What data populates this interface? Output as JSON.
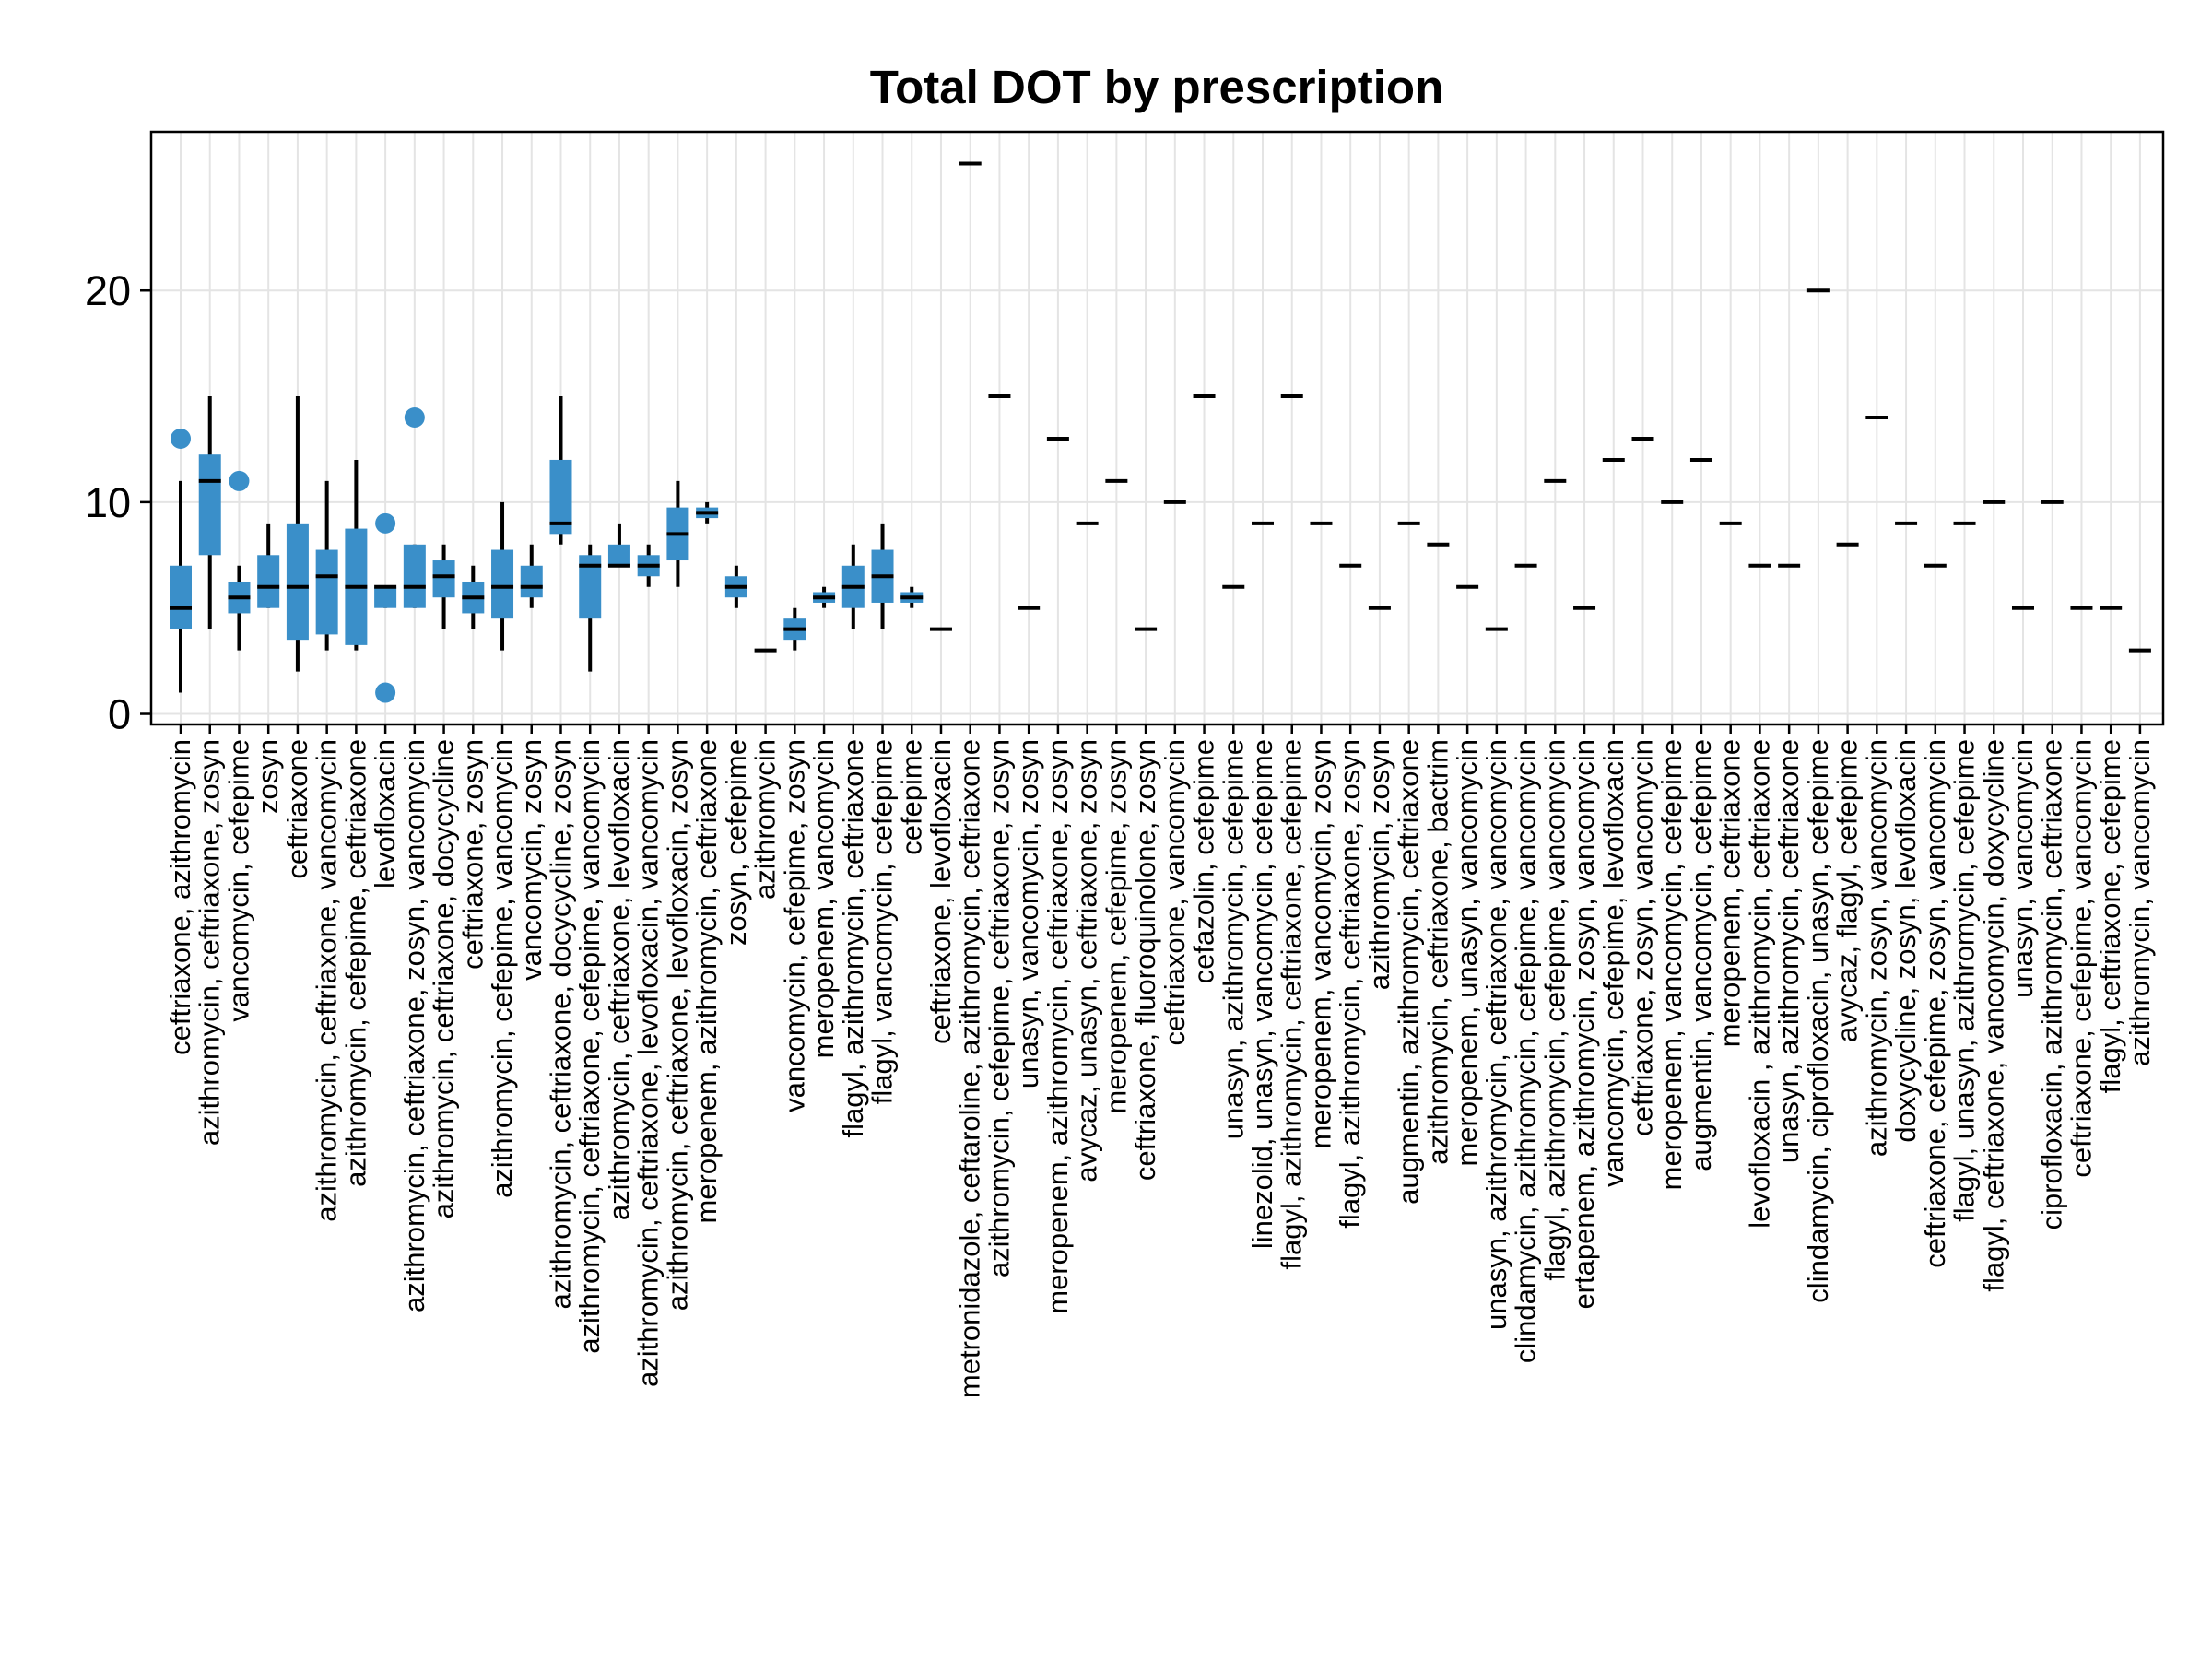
{
  "chart_data": {
    "type": "boxplot",
    "title": "Total DOT by prescription",
    "xlabel": "",
    "ylabel": "",
    "ylim": [
      -0.5,
      27.5
    ],
    "yticks": [
      0,
      10,
      20
    ],
    "grid": true,
    "legend": "none",
    "colors": {
      "box": "#3a8fc9",
      "median": "#000000",
      "outlier": "#3a8fc9",
      "whisker": "#000000",
      "grid": "#e4e4e4"
    },
    "categories": [
      "ceftriaxone, azithromycin",
      "azithromycin, ceftriaxone, zosyn",
      "vancomycin, cefepime",
      "zosyn",
      "ceftriaxone",
      "azithromycin, ceftriaxone, vancomycin",
      "azithromycin, cefepime, ceftriaxone",
      "levofloxacin",
      "azithromycin, ceftriaxone, zosyn, vancomycin",
      "azithromycin, ceftriaxone, docycycline",
      "ceftriaxone, zosyn",
      "azithromycin, cefepime, vancomycin",
      "vancomycin, zosyn",
      "azithromycin, ceftriaxone, docycycline, zosyn",
      "azithromycin, ceftriaxone, cefepime, vancomycin",
      "azithromycin, ceftriaxone, levofloxacin",
      "azithromycin, ceftriaxone, levofloxacin, vancomycin",
      "azithromycin, ceftriaxone, levofloxacin, zosyn",
      "meropenem, azithromycin, ceftriaxone",
      "zosyn, cefepime",
      "azithromycin",
      "vancomycin, cefepime, zosyn",
      "meropenem, vancomycin",
      "flagyl, azithromycin, ceftriaxone",
      "flagyl, vancomycin, cefepime",
      "cefepime",
      "ceftriaxone, levofloxacin",
      "metronidazole, ceftaroline, azithromycin, ceftriaxone",
      "azithromycin, cefepime, ceftriaxone, zosyn",
      "unasyn, vancomycin, zosyn",
      "meropenem, azithromycin, ceftriaxone, zosyn",
      "avycaz, unasyn, ceftriaxone, zosyn",
      "meropenem, cefepime, zosyn",
      "ceftriaxone, fluoroquinolone, zosyn",
      "ceftriaxone, vancomycin",
      "cefazolin, cefepime",
      "unasyn, azithromycin, cefepime",
      "linezolid, unasyn, vancomycin, cefepime",
      "flagyl, azithromycin, ceftriaxone, cefepime",
      "meropenem, vancomycin, zosyn",
      "flagyl, azithromycin, ceftriaxone, zosyn",
      "azithromycin, zosyn",
      "augmentin, azithromycin, ceftriaxone",
      "azithromycin, ceftriaxone, bactrim",
      "meropenem, unasyn, vancomycin",
      "unasyn, azithromycin, ceftriaxone, vancomycin",
      "clindamycin, azithromycin, cefepime, vancomycin",
      "flagyl, azithromycin, cefepime, vancomycin",
      "ertapenem, azithromycin, zosyn, vancomycin",
      "vancomycin, cefepime, levofloxacin",
      "ceftriaxone, zosyn, vancomycin",
      "meropenem, vancomycin, cefepime",
      "augmentin, vancomycin, cefepime",
      "meropenem, ceftriaxone",
      "levofloxacin , azithromycin, ceftriaxone",
      "unasyn, azithromycin, ceftriaxone",
      "clindamycin, ciprofloxacin, unasyn, cefepime",
      "avycaz, flagyl, cefepime",
      "azithromycin, zosyn, vancomycin",
      "doxycycline, zosyn, levofloxacin",
      "ceftriaxone, cefepime, zosyn, vancomycin",
      "flagyl, unasyn, azithromycin, cefepime",
      "flagyl, ceftriaxone, vancomycin, doxycycline",
      "unasyn, vancomycin",
      "ciprofloxacin, azithromycin, ceftriaxone",
      "ceftriaxone, cefepime, vancomycin",
      "flagyl, ceftriaxone, cefepime",
      "azithromycin, vancomycin"
    ],
    "series": [
      {
        "boxes": [
          {
            "q1": 4,
            "median": 5,
            "q3": 7,
            "lo": 1,
            "hi": 11,
            "outliers": [
              13
            ]
          },
          {
            "q1": 7.5,
            "median": 11,
            "q3": 12.25,
            "lo": 4,
            "hi": 15,
            "outliers": []
          },
          {
            "q1": 4.75,
            "median": 5.5,
            "q3": 6.25,
            "lo": 3,
            "hi": 7,
            "outliers": [
              11
            ]
          },
          {
            "q1": 5,
            "median": 6,
            "q3": 7.5,
            "lo": 5,
            "hi": 9,
            "outliers": []
          },
          {
            "q1": 3.5,
            "median": 6,
            "q3": 9,
            "lo": 2,
            "hi": 15,
            "outliers": []
          },
          {
            "q1": 3.75,
            "median": 6.5,
            "q3": 7.75,
            "lo": 3,
            "hi": 11,
            "outliers": []
          },
          {
            "q1": 3.25,
            "median": 6,
            "q3": 8.75,
            "lo": 3,
            "hi": 12,
            "outliers": []
          },
          {
            "q1": 5,
            "median": 6,
            "q3": 6,
            "lo": 5,
            "hi": 6,
            "outliers": [
              9,
              1
            ]
          },
          {
            "q1": 5,
            "median": 6,
            "q3": 8,
            "lo": 5,
            "hi": 8,
            "outliers": [
              14
            ]
          },
          {
            "q1": 5.5,
            "median": 6.5,
            "q3": 7.25,
            "lo": 4,
            "hi": 8,
            "outliers": []
          },
          {
            "q1": 4.75,
            "median": 5.5,
            "q3": 6.25,
            "lo": 4,
            "hi": 7,
            "outliers": []
          },
          {
            "q1": 4.5,
            "median": 6,
            "q3": 7.75,
            "lo": 3,
            "hi": 10,
            "outliers": []
          },
          {
            "q1": 5.5,
            "median": 6,
            "q3": 7,
            "lo": 5,
            "hi": 8,
            "outliers": []
          },
          {
            "q1": 8.5,
            "median": 9,
            "q3": 12,
            "lo": 8,
            "hi": 15,
            "outliers": []
          },
          {
            "q1": 4.5,
            "median": 7,
            "q3": 7.5,
            "lo": 2,
            "hi": 8,
            "outliers": []
          },
          {
            "q1": 7,
            "median": 7,
            "q3": 8,
            "lo": 7,
            "hi": 9,
            "outliers": []
          },
          {
            "q1": 6.5,
            "median": 7,
            "q3": 7.5,
            "lo": 6,
            "hi": 8,
            "outliers": []
          },
          {
            "q1": 7.25,
            "median": 8.5,
            "q3": 9.75,
            "lo": 6,
            "hi": 11,
            "outliers": []
          },
          {
            "q1": 9.25,
            "median": 9.5,
            "q3": 9.75,
            "lo": 9,
            "hi": 10,
            "outliers": []
          },
          {
            "q1": 5.5,
            "median": 6,
            "q3": 6.5,
            "lo": 5,
            "hi": 7,
            "outliers": []
          },
          {
            "q1": 3,
            "median": 3,
            "q3": 3,
            "lo": 3,
            "hi": 3,
            "outliers": []
          },
          {
            "q1": 3.5,
            "median": 4,
            "q3": 4.5,
            "lo": 3,
            "hi": 5,
            "outliers": []
          },
          {
            "q1": 5.25,
            "median": 5.5,
            "q3": 5.75,
            "lo": 5,
            "hi": 6,
            "outliers": []
          },
          {
            "q1": 5,
            "median": 6,
            "q3": 7,
            "lo": 4,
            "hi": 8,
            "outliers": []
          },
          {
            "q1": 5.25,
            "median": 6.5,
            "q3": 7.75,
            "lo": 4,
            "hi": 9,
            "outliers": []
          },
          {
            "q1": 5.25,
            "median": 5.5,
            "q3": 5.75,
            "lo": 5,
            "hi": 6,
            "outliers": []
          },
          {
            "q1": 4,
            "median": 4,
            "q3": 4,
            "lo": 4,
            "hi": 4,
            "outliers": []
          },
          {
            "q1": 26,
            "median": 26,
            "q3": 26,
            "lo": 26,
            "hi": 26,
            "outliers": []
          },
          {
            "q1": 15,
            "median": 15,
            "q3": 15,
            "lo": 15,
            "hi": 15,
            "outliers": []
          },
          {
            "q1": 5,
            "median": 5,
            "q3": 5,
            "lo": 5,
            "hi": 5,
            "outliers": []
          },
          {
            "q1": 13,
            "median": 13,
            "q3": 13,
            "lo": 13,
            "hi": 13,
            "outliers": []
          },
          {
            "q1": 9,
            "median": 9,
            "q3": 9,
            "lo": 9,
            "hi": 9,
            "outliers": []
          },
          {
            "q1": 11,
            "median": 11,
            "q3": 11,
            "lo": 11,
            "hi": 11,
            "outliers": []
          },
          {
            "q1": 4,
            "median": 4,
            "q3": 4,
            "lo": 4,
            "hi": 4,
            "outliers": []
          },
          {
            "q1": 10,
            "median": 10,
            "q3": 10,
            "lo": 10,
            "hi": 10,
            "outliers": []
          },
          {
            "q1": 15,
            "median": 15,
            "q3": 15,
            "lo": 15,
            "hi": 15,
            "outliers": []
          },
          {
            "q1": 6,
            "median": 6,
            "q3": 6,
            "lo": 6,
            "hi": 6,
            "outliers": []
          },
          {
            "q1": 9,
            "median": 9,
            "q3": 9,
            "lo": 9,
            "hi": 9,
            "outliers": []
          },
          {
            "q1": 15,
            "median": 15,
            "q3": 15,
            "lo": 15,
            "hi": 15,
            "outliers": []
          },
          {
            "q1": 9,
            "median": 9,
            "q3": 9,
            "lo": 9,
            "hi": 9,
            "outliers": []
          },
          {
            "q1": 7,
            "median": 7,
            "q3": 7,
            "lo": 7,
            "hi": 7,
            "outliers": []
          },
          {
            "q1": 5,
            "median": 5,
            "q3": 5,
            "lo": 5,
            "hi": 5,
            "outliers": []
          },
          {
            "q1": 9,
            "median": 9,
            "q3": 9,
            "lo": 9,
            "hi": 9,
            "outliers": []
          },
          {
            "q1": 8,
            "median": 8,
            "q3": 8,
            "lo": 8,
            "hi": 8,
            "outliers": []
          },
          {
            "q1": 6,
            "median": 6,
            "q3": 6,
            "lo": 6,
            "hi": 6,
            "outliers": []
          },
          {
            "q1": 4,
            "median": 4,
            "q3": 4,
            "lo": 4,
            "hi": 4,
            "outliers": []
          },
          {
            "q1": 7,
            "median": 7,
            "q3": 7,
            "lo": 7,
            "hi": 7,
            "outliers": []
          },
          {
            "q1": 11,
            "median": 11,
            "q3": 11,
            "lo": 11,
            "hi": 11,
            "outliers": []
          },
          {
            "q1": 5,
            "median": 5,
            "q3": 5,
            "lo": 5,
            "hi": 5,
            "outliers": []
          },
          {
            "q1": 12,
            "median": 12,
            "q3": 12,
            "lo": 12,
            "hi": 12,
            "outliers": []
          },
          {
            "q1": 13,
            "median": 13,
            "q3": 13,
            "lo": 13,
            "hi": 13,
            "outliers": []
          },
          {
            "q1": 10,
            "median": 10,
            "q3": 10,
            "lo": 10,
            "hi": 10,
            "outliers": []
          },
          {
            "q1": 12,
            "median": 12,
            "q3": 12,
            "lo": 12,
            "hi": 12,
            "outliers": []
          },
          {
            "q1": 9,
            "median": 9,
            "q3": 9,
            "lo": 9,
            "hi": 9,
            "outliers": []
          },
          {
            "q1": 7,
            "median": 7,
            "q3": 7,
            "lo": 7,
            "hi": 7,
            "outliers": []
          },
          {
            "q1": 7,
            "median": 7,
            "q3": 7,
            "lo": 7,
            "hi": 7,
            "outliers": []
          },
          {
            "q1": 20,
            "median": 20,
            "q3": 20,
            "lo": 20,
            "hi": 20,
            "outliers": []
          },
          {
            "q1": 8,
            "median": 8,
            "q3": 8,
            "lo": 8,
            "hi": 8,
            "outliers": []
          },
          {
            "q1": 14,
            "median": 14,
            "q3": 14,
            "lo": 14,
            "hi": 14,
            "outliers": []
          },
          {
            "q1": 9,
            "median": 9,
            "q3": 9,
            "lo": 9,
            "hi": 9,
            "outliers": []
          },
          {
            "q1": 7,
            "median": 7,
            "q3": 7,
            "lo": 7,
            "hi": 7,
            "outliers": []
          },
          {
            "q1": 9,
            "median": 9,
            "q3": 9,
            "lo": 9,
            "hi": 9,
            "outliers": []
          },
          {
            "q1": 10,
            "median": 10,
            "q3": 10,
            "lo": 10,
            "hi": 10,
            "outliers": []
          },
          {
            "q1": 5,
            "median": 5,
            "q3": 5,
            "lo": 5,
            "hi": 5,
            "outliers": []
          },
          {
            "q1": 10,
            "median": 10,
            "q3": 10,
            "lo": 10,
            "hi": 10,
            "outliers": []
          },
          {
            "q1": 5,
            "median": 5,
            "q3": 5,
            "lo": 5,
            "hi": 5,
            "outliers": []
          },
          {
            "q1": 5,
            "median": 5,
            "q3": 5,
            "lo": 5,
            "hi": 5,
            "outliers": []
          },
          {
            "q1": 3,
            "median": 3,
            "q3": 3,
            "lo": 3,
            "hi": 3,
            "outliers": []
          }
        ]
      }
    ]
  }
}
